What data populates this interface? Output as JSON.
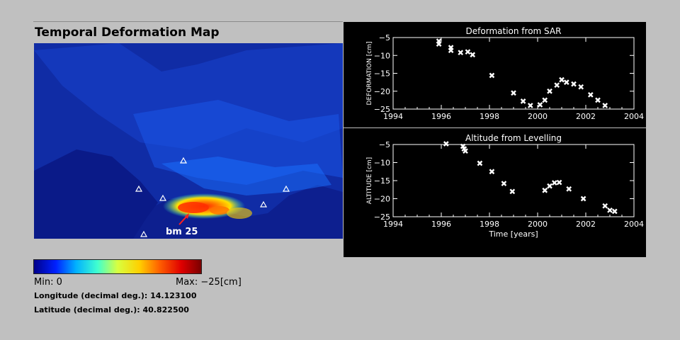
{
  "map": {
    "title": "Temporal Deformation Map",
    "annotation": "bm 25",
    "min_label": "Min: 0",
    "max_label": "Max: −25[cm]",
    "longitude_label": "Longitude (decimal deg.): 14.123100",
    "latitude_label": "Latitude (decimal deg.): 40.822500",
    "colorbar_colors": [
      "#00008a",
      "#0020ff",
      "#00b0ff",
      "#40ffd0",
      "#d8ff40",
      "#ffd000",
      "#ff6000",
      "#e00000",
      "#7a0000"
    ]
  },
  "chart_data": [
    {
      "type": "scatter",
      "title": "Deformation from SAR",
      "xlabel": "",
      "ylabel": "DEFORMATION [cm]",
      "xlim": [
        1994,
        2004
      ],
      "ylim": [
        -25,
        -5
      ],
      "xticks": [
        1994,
        1996,
        1998,
        2000,
        2002,
        2004
      ],
      "yticks": [
        -5,
        -10,
        -15,
        -20,
        -25
      ],
      "grid": false,
      "marker_color": "#ffffff",
      "x": [
        1995.9,
        1995.9,
        1996.4,
        1996.4,
        1996.8,
        1997.1,
        1997.3,
        1998.1,
        1999.0,
        1999.4,
        1999.7,
        2000.1,
        2000.3,
        2000.5,
        2000.8,
        2001.0,
        2001.2,
        2001.5,
        2001.8,
        2002.2,
        2002.5,
        2002.8
      ],
      "y": [
        -6.0,
        -6.8,
        -7.8,
        -8.6,
        -9.2,
        -9.0,
        -9.8,
        -15.6,
        -20.5,
        -22.8,
        -24.0,
        -23.8,
        -22.5,
        -20.0,
        -18.3,
        -16.8,
        -17.5,
        -18.0,
        -18.8,
        -21.0,
        -22.5,
        -24.0
      ]
    },
    {
      "type": "scatter",
      "title": "Altitude from Levelling",
      "xlabel": "Time [years]",
      "ylabel": "ALTITUDE [cm]",
      "xlim": [
        1994,
        2004
      ],
      "ylim": [
        -25,
        -5
      ],
      "xticks": [
        1994,
        1996,
        1998,
        2000,
        2002,
        2004
      ],
      "yticks": [
        -5,
        -10,
        -15,
        -20,
        -25
      ],
      "grid": false,
      "marker_color": "#ffffff",
      "x": [
        1996.2,
        1996.9,
        1996.95,
        1997.0,
        1997.6,
        1998.1,
        1998.6,
        1998.95,
        2000.3,
        2000.5,
        2000.7,
        2000.9,
        2001.3,
        2001.9,
        2002.8,
        2003.0,
        2003.2
      ],
      "y": [
        -4.8,
        -5.5,
        -6.2,
        -6.8,
        -10.2,
        -12.5,
        -15.8,
        -18.0,
        -17.7,
        -16.5,
        -15.6,
        -15.5,
        -17.3,
        -20.0,
        -22.0,
        -23.2,
        -23.5
      ]
    }
  ]
}
